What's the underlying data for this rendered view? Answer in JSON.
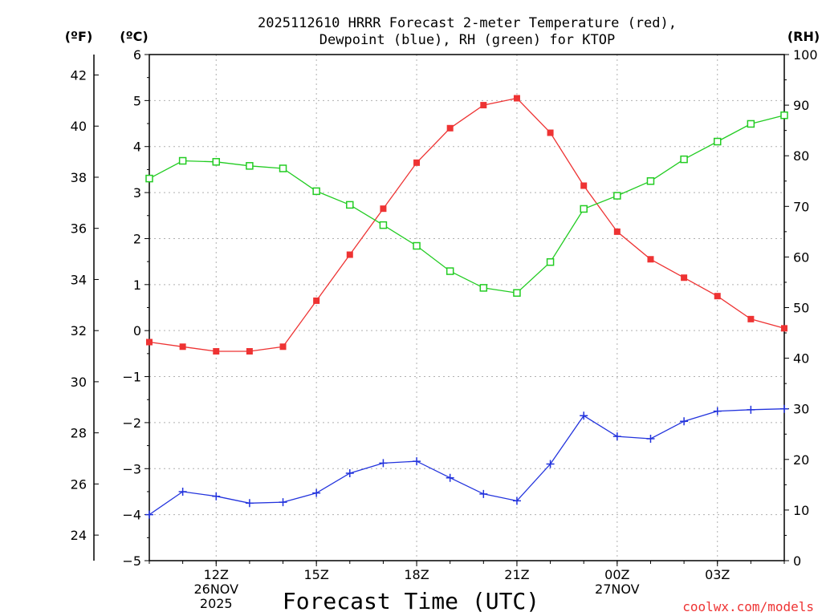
{
  "chart_data": {
    "type": "line",
    "title_line1": "2025112610 HRRR Forecast 2-meter Temperature (red),",
    "title_line2": "Dewpoint (blue), RH (green) for KTOP",
    "xlabel": "Forecast Time (UTC)",
    "credit": "coolwx.com/models",
    "units": {
      "fahrenheit": "(ºF)",
      "celsius": "(ºC)",
      "rh": "(RH)"
    },
    "x_hours": [
      10,
      11,
      12,
      13,
      14,
      15,
      16,
      17,
      18,
      19,
      20,
      21,
      22,
      23,
      24,
      25,
      26,
      27,
      28,
      29
    ],
    "x_range": [
      10,
      29
    ],
    "x_ticks": [
      {
        "hour": 12,
        "lines": [
          "12Z",
          "26NOV",
          "2025"
        ]
      },
      {
        "hour": 15,
        "lines": [
          "15Z"
        ]
      },
      {
        "hour": 18,
        "lines": [
          "18Z"
        ]
      },
      {
        "hour": 21,
        "lines": [
          "21Z"
        ]
      },
      {
        "hour": 24,
        "lines": [
          "00Z",
          "27NOV"
        ]
      },
      {
        "hour": 27,
        "lines": [
          "03Z"
        ]
      }
    ],
    "celsius_axis": {
      "min": -5,
      "max": 6,
      "ticks": [
        "-5",
        "-4",
        "-3",
        "-2",
        "-1",
        "0",
        "1",
        "2",
        "3",
        "4",
        "5",
        "6"
      ]
    },
    "fahrenheit_axis": {
      "ticks": [
        "24",
        "26",
        "28",
        "30",
        "32",
        "34",
        "36",
        "38",
        "40",
        "42"
      ]
    },
    "rh_axis": {
      "min": 0,
      "max": 100,
      "ticks": [
        "0",
        "10",
        "20",
        "30",
        "40",
        "50",
        "60",
        "70",
        "80",
        "90",
        "100"
      ]
    },
    "series": [
      {
        "name": "Temperature",
        "color": "#ee3333",
        "axis": "celsius",
        "marker": "filled-square",
        "values": [
          -0.25,
          -0.35,
          -0.45,
          -0.45,
          -0.35,
          0.65,
          1.65,
          2.65,
          3.65,
          4.4,
          4.9,
          5.05,
          4.3,
          3.15,
          2.15,
          1.55,
          1.15,
          0.75,
          0.25,
          0.05
        ]
      },
      {
        "name": "Dewpoint",
        "color": "#2233dd",
        "axis": "celsius",
        "marker": "plus",
        "values": [
          -4.0,
          -3.5,
          -3.6,
          -3.75,
          -3.73,
          -3.53,
          -3.1,
          -2.88,
          -2.84,
          -3.2,
          -3.55,
          -3.7,
          -2.9,
          -1.85,
          -2.3,
          -2.35,
          -1.97,
          -1.75,
          -1.72,
          -1.7
        ]
      },
      {
        "name": "RH",
        "color": "#22cc22",
        "axis": "rh",
        "marker": "open-square",
        "values": [
          75.5,
          79,
          78.8,
          78,
          77.5,
          73,
          70.3,
          66.3,
          62.2,
          57.2,
          53.9,
          52.9,
          59,
          69.5,
          72.1,
          75,
          79.3,
          82.8,
          86.3,
          88
        ]
      }
    ]
  }
}
